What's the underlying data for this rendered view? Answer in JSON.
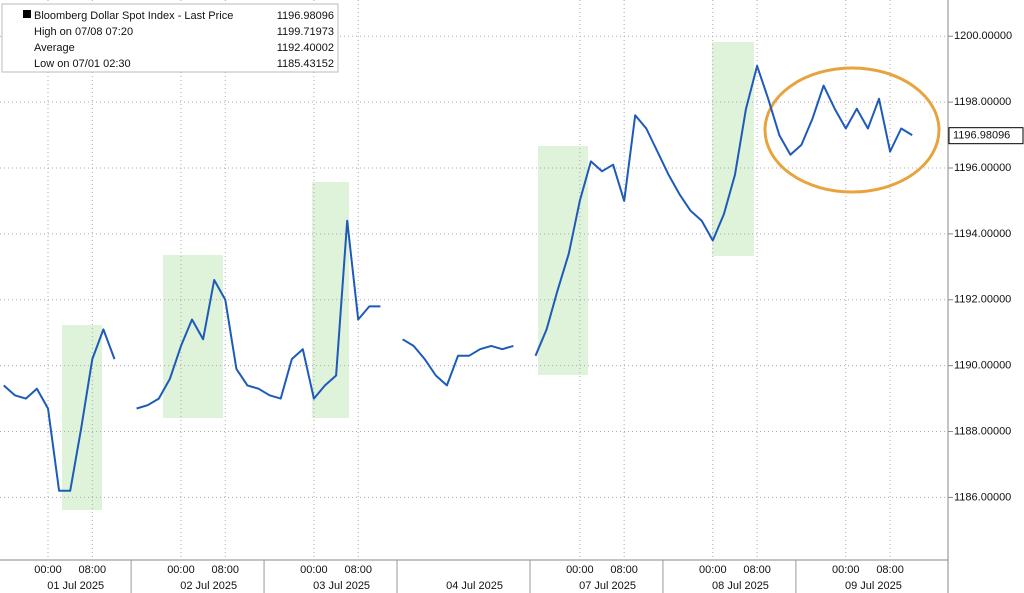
{
  "chart_data": {
    "type": "line",
    "legend_entries": [
      {
        "label": "Bloomberg Dollar Spot Index - Last Price",
        "value": 1196.98096
      },
      {
        "label": "High on 07/08 07:20",
        "value": 1199.71973
      },
      {
        "label": "Average",
        "value": 1192.40002
      },
      {
        "label": "Low on 07/01 02:30",
        "value": 1185.43152
      }
    ],
    "categories": [
      null,
      null,
      null,
      null,
      "00:00",
      null,
      null,
      null,
      "08:00",
      null,
      null,
      null,
      null,
      null,
      null,
      null,
      "00:00",
      null,
      null,
      null,
      "08:00",
      null,
      null,
      null,
      null,
      null,
      null,
      null,
      "00:00",
      null,
      null,
      null,
      "08:00",
      null,
      null,
      null,
      null,
      null,
      null,
      null,
      null,
      null,
      null,
      null,
      null,
      null,
      null,
      null,
      null,
      null,
      null,
      null,
      "00:00",
      null,
      null,
      null,
      "08:00",
      null,
      null,
      null,
      null,
      null,
      null,
      null,
      "00:00",
      null,
      null,
      null,
      "08:00",
      null,
      null,
      null,
      null,
      null,
      null,
      null,
      "00:00",
      null,
      null,
      null,
      "08:00",
      null,
      null,
      null,
      null
    ],
    "date_labels": [
      "01 Jul 2025",
      "02 Jul 2025",
      "03 Jul 2025",
      "04 Jul 2025",
      "07 Jul 2025",
      "08 Jul 2025",
      "09 Jul 2025"
    ],
    "series": [
      {
        "name": "Bloomberg Dollar Spot Index - Last Price",
        "color": "#1e5bb8",
        "values": [
          1189.4,
          1189.1,
          1189.0,
          1189.3,
          1188.7,
          1186.2,
          1186.2,
          1188.1,
          1190.2,
          1191.1,
          1190.2,
          null,
          1188.7,
          1188.8,
          1189.0,
          1189.6,
          1190.6,
          1191.4,
          1190.8,
          1192.6,
          1192.0,
          1189.9,
          1189.4,
          1189.3,
          1189.1,
          1189.0,
          1190.2,
          1190.5,
          1189.0,
          1189.4,
          1189.7,
          1194.4,
          1191.4,
          1191.8,
          1191.8,
          null,
          1190.8,
          1190.6,
          1190.2,
          1189.7,
          1189.4,
          1190.3,
          1190.3,
          1190.5,
          1190.6,
          1190.5,
          1190.6,
          null,
          1190.3,
          1191.1,
          1192.3,
          1193.4,
          1195.0,
          1196.2,
          1195.9,
          1196.1,
          1195.0,
          1197.6,
          1197.2,
          1196.5,
          1195.8,
          1195.2,
          1194.7,
          1194.4,
          1193.8,
          1194.6,
          1195.8,
          1197.8,
          1199.1,
          1198.1,
          1197.0,
          1196.4,
          1196.7,
          1197.5,
          1198.5,
          1197.8,
          1197.2,
          1197.8,
          1197.2,
          1198.1,
          1196.5,
          1197.2,
          1197.0,
          null,
          null
        ]
      }
    ],
    "ylim": [
      1184.1,
      1201.1
    ],
    "yticks": [
      {
        "value": 1186,
        "label": "1186.00000"
      },
      {
        "value": 1188,
        "label": "1188.00000"
      },
      {
        "value": 1190,
        "label": "1190.00000"
      },
      {
        "value": 1192,
        "label": "1192.00000"
      },
      {
        "value": 1194,
        "label": "1194.00000"
      },
      {
        "value": 1196,
        "label": "1196.00000"
      },
      {
        "value": 1198,
        "label": "1198.00000"
      },
      {
        "value": 1200,
        "label": "1200.00000"
      }
    ],
    "grid": true
  }
}
